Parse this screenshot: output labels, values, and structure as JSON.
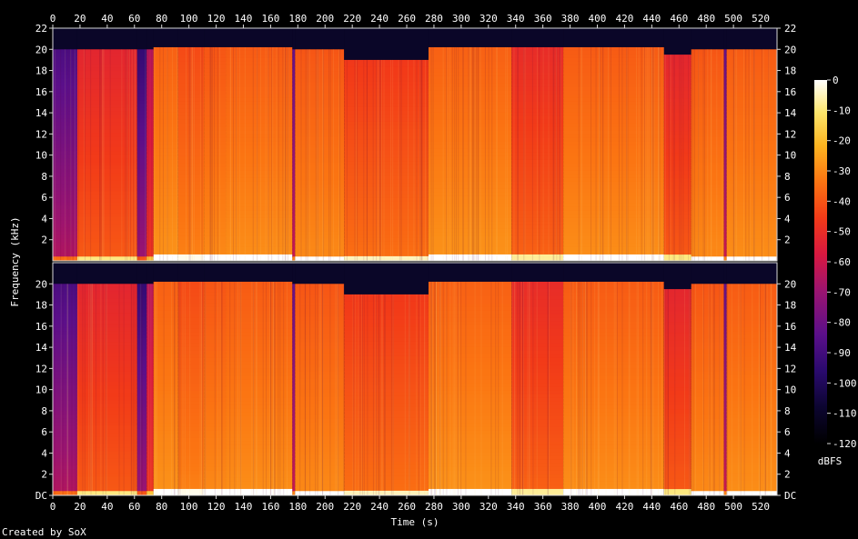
{
  "chart_data": {
    "type": "heatmap",
    "title": "",
    "xlabel": "Time (s)",
    "ylabel": "Frequency (kHz)",
    "xlim": [
      0,
      532
    ],
    "ylim_khz": [
      0,
      22
    ],
    "x_ticks": [
      "0",
      "20",
      "40",
      "60",
      "80",
      "100",
      "120",
      "140",
      "160",
      "180",
      "200",
      "220",
      "240",
      "260",
      "280",
      "300",
      "320",
      "340",
      "360",
      "380",
      "400",
      "420",
      "440",
      "460",
      "480",
      "500",
      "520"
    ],
    "y_ticks_top": [
      "2",
      "4",
      "6",
      "8",
      "10",
      "12",
      "14",
      "16",
      "18",
      "20",
      "22"
    ],
    "y_ticks_bottom": [
      "DC",
      "2",
      "4",
      "6",
      "8",
      "10",
      "12",
      "14",
      "16",
      "18",
      "20"
    ],
    "channels": 2,
    "colorbar": {
      "label": "dBFS",
      "ticks": [
        "0",
        "-10",
        "-20",
        "-30",
        "-40",
        "-50",
        "-60",
        "-70",
        "-80",
        "-90",
        "-100",
        "-110",
        "-120"
      ],
      "range_db": [
        -120,
        0
      ]
    },
    "segments": [
      {
        "start": 0,
        "end": 18,
        "cutoff_khz": 20,
        "level": 0.25
      },
      {
        "start": 18,
        "end": 62,
        "cutoff_khz": 20,
        "level": 0.55
      },
      {
        "start": 62,
        "end": 69,
        "cutoff_khz": 20,
        "level": 0.2
      },
      {
        "start": 69,
        "end": 74,
        "cutoff_khz": 20,
        "level": 0.45
      },
      {
        "start": 74,
        "end": 92,
        "cutoff_khz": 20.2,
        "level": 0.68
      },
      {
        "start": 92,
        "end": 111,
        "cutoff_khz": 20.2,
        "level": 0.64
      },
      {
        "start": 111,
        "end": 127,
        "cutoff_khz": 20.2,
        "level": 0.66
      },
      {
        "start": 127,
        "end": 176,
        "cutoff_khz": 20.2,
        "level": 0.67
      },
      {
        "start": 176,
        "end": 178,
        "cutoff_khz": 20,
        "level": 0.3
      },
      {
        "start": 178,
        "end": 214,
        "cutoff_khz": 20,
        "level": 0.66
      },
      {
        "start": 214,
        "end": 276,
        "cutoff_khz": 19,
        "level": 0.6
      },
      {
        "start": 276,
        "end": 337,
        "cutoff_khz": 20.2,
        "level": 0.68
      },
      {
        "start": 337,
        "end": 375,
        "cutoff_khz": 20.2,
        "level": 0.57
      },
      {
        "start": 375,
        "end": 449,
        "cutoff_khz": 20.2,
        "level": 0.67
      },
      {
        "start": 449,
        "end": 469,
        "cutoff_khz": 19.5,
        "level": 0.55
      },
      {
        "start": 469,
        "end": 493,
        "cutoff_khz": 20,
        "level": 0.66
      },
      {
        "start": 493,
        "end": 495,
        "cutoff_khz": 20,
        "level": 0.3
      },
      {
        "start": 495,
        "end": 532,
        "cutoff_khz": 20,
        "level": 0.67
      }
    ]
  },
  "footer": {
    "credit": "Created by SoX"
  }
}
